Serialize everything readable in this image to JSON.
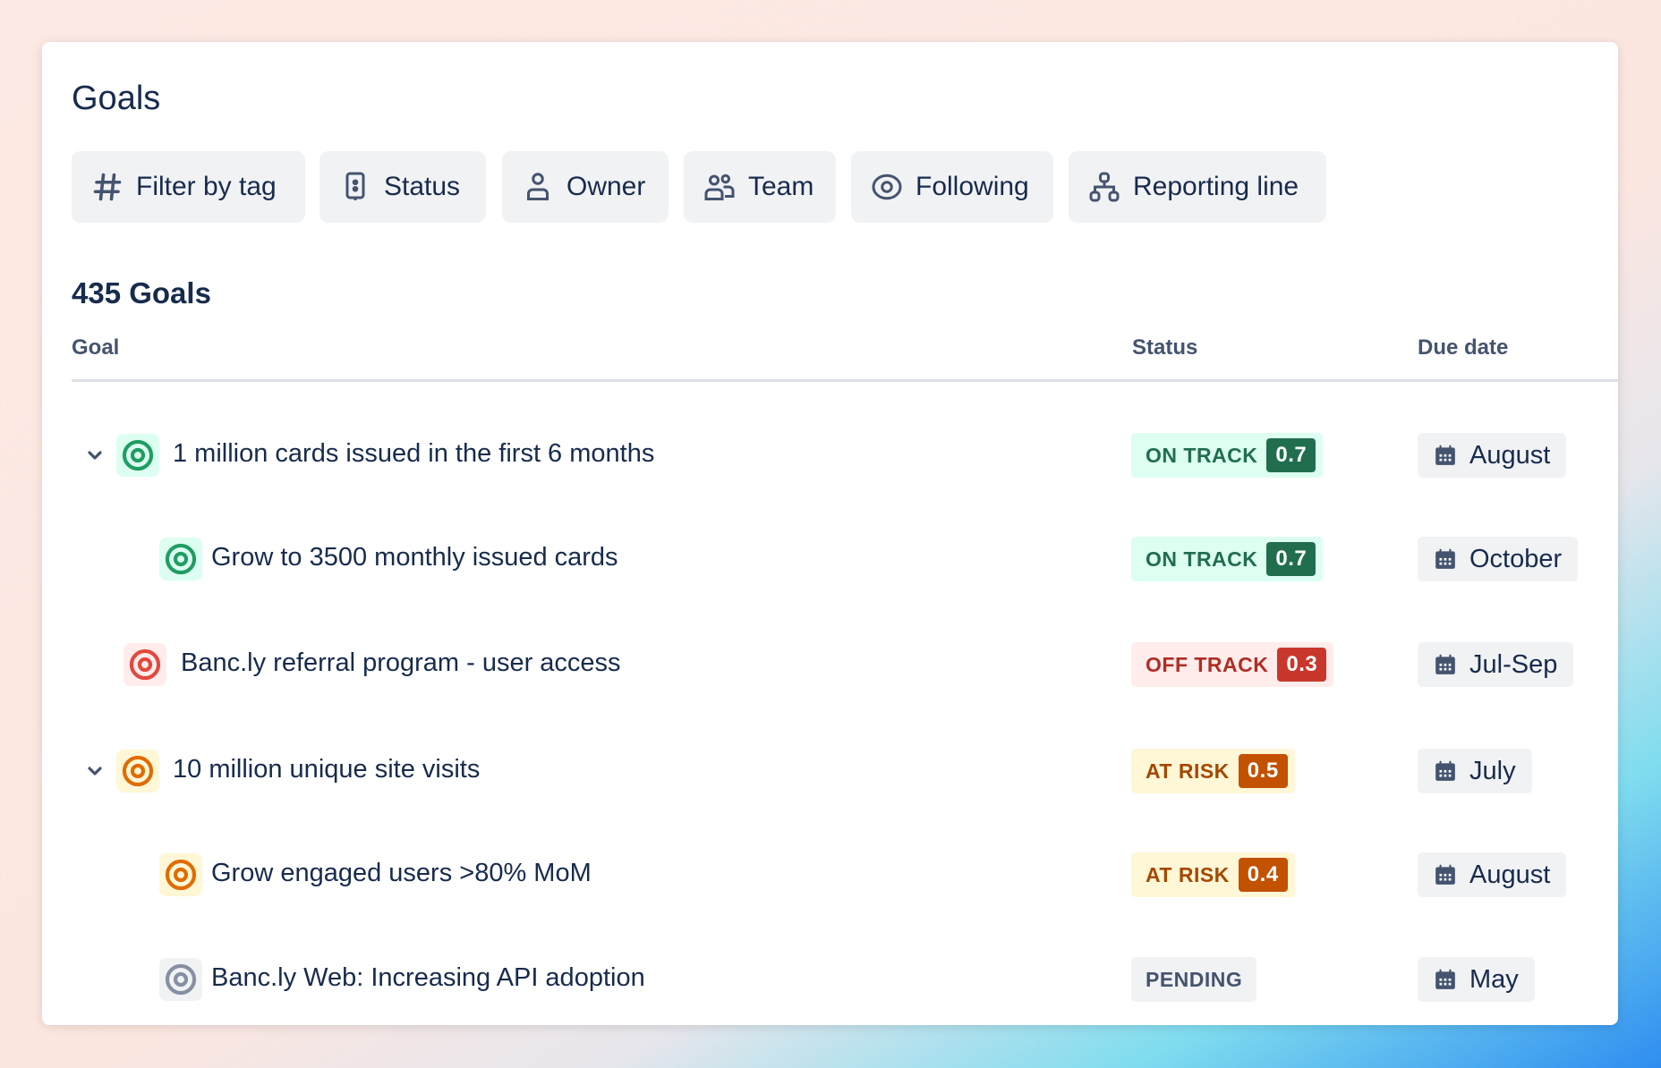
{
  "header": {
    "title": "Goals"
  },
  "filters": [
    {
      "label": "Filter by tag",
      "icon": "hash-icon"
    },
    {
      "label": "Status",
      "icon": "status-icon"
    },
    {
      "label": "Owner",
      "icon": "person-icon"
    },
    {
      "label": "Team",
      "icon": "people-icon"
    },
    {
      "label": "Following",
      "icon": "eye-icon"
    },
    {
      "label": "Reporting line",
      "icon": "hierarchy-icon"
    }
  ],
  "summary": {
    "count_label": "435 Goals"
  },
  "table": {
    "columns": {
      "goal": "Goal",
      "status": "Status",
      "due": "Due date"
    },
    "rows": [
      {
        "goal": "1 million cards issued in the first 6 months",
        "status": "ON TRACK",
        "score": "0.7",
        "due": "August",
        "tone": "green",
        "expandable": true
      },
      {
        "goal": "Grow to 3500 monthly issued cards",
        "status": "ON TRACK",
        "score": "0.7",
        "due": "October",
        "tone": "green",
        "expandable": false
      },
      {
        "goal": "Banc.ly referral program - user access",
        "status": "OFF TRACK",
        "score": "0.3",
        "due": "Jul-Sep",
        "tone": "red",
        "expandable": false
      },
      {
        "goal": "10 million unique site visits",
        "status": "AT RISK",
        "score": "0.5",
        "due": "July",
        "tone": "orange",
        "expandable": true
      },
      {
        "goal": "Grow engaged users >80% MoM",
        "status": "AT RISK",
        "score": "0.4",
        "due": "August",
        "tone": "orange",
        "expandable": false
      },
      {
        "goal": "Banc.ly Web: Increasing API adoption",
        "status": "PENDING",
        "score": null,
        "due": "May",
        "tone": "gray",
        "expandable": false
      }
    ]
  },
  "colors": {
    "green": {
      "icon": "#1f9d62",
      "bg": "#dcfff1",
      "text": "#216e4e",
      "score": "#216e4e"
    },
    "red": {
      "icon": "#e2483d",
      "bg": "#ffeceb",
      "text": "#ae2e24",
      "score": "#c9372c"
    },
    "orange": {
      "icon": "#e06c00",
      "bg": "#fff7d6",
      "text": "#a54800",
      "score": "#c25100"
    },
    "gray": {
      "icon": "#8590a2",
      "bg": "#f1f2f4",
      "text": "#44546f",
      "score": "#44546f"
    }
  }
}
